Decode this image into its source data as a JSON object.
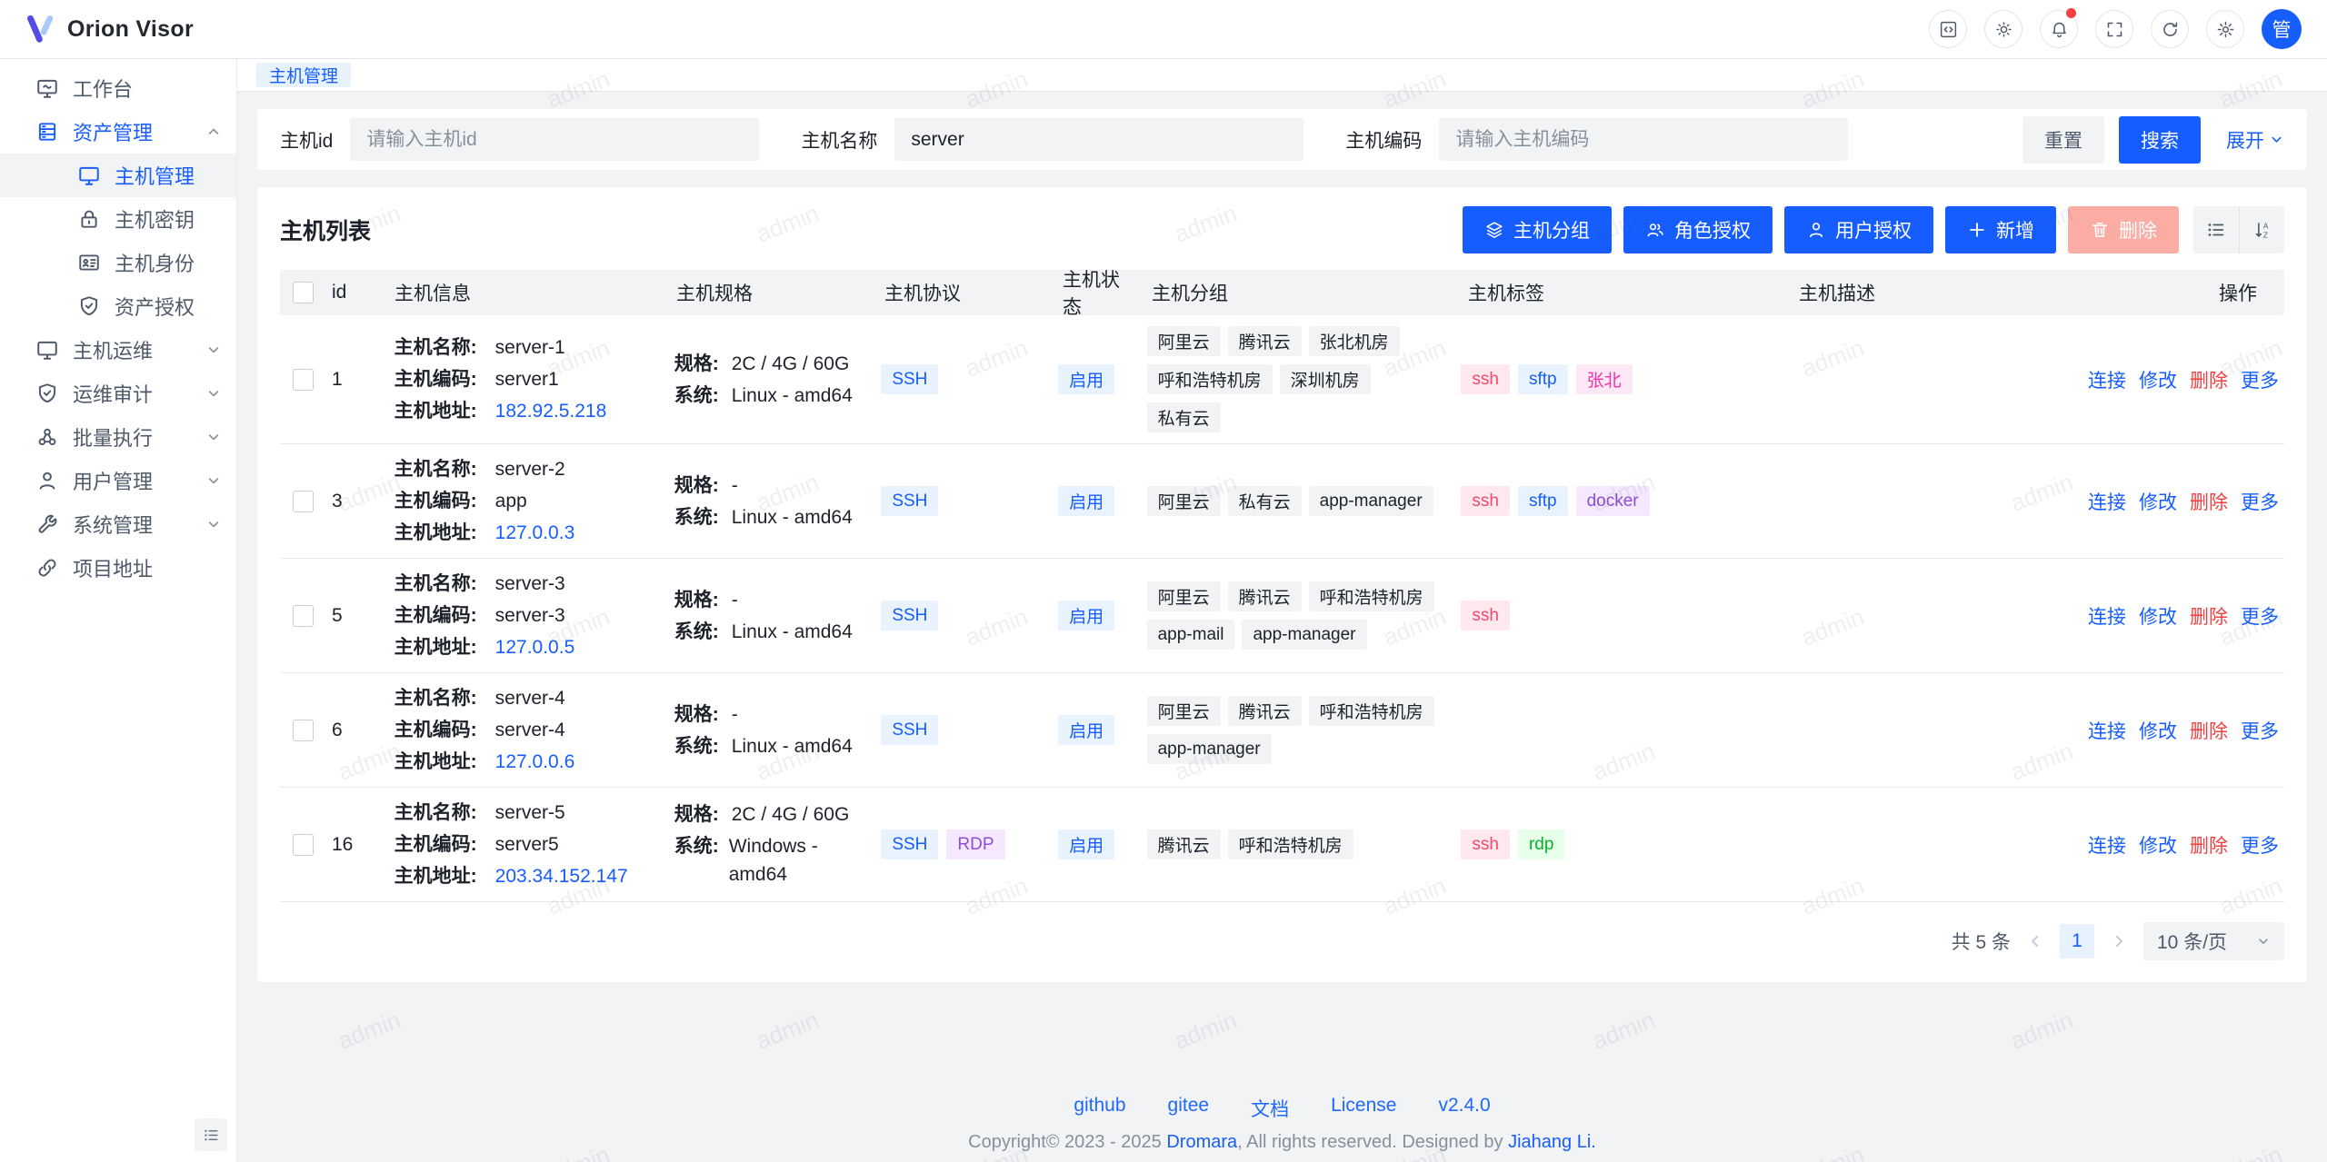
{
  "brand": {
    "title": "Orion Visor"
  },
  "header": {
    "icons": [
      "code",
      "theme-sun",
      "notification-bell",
      "fullscreen",
      "refresh",
      "settings-gear"
    ],
    "avatar_text": "管",
    "notification_has_badge": true
  },
  "sidebar": {
    "items": [
      {
        "label": "工作台"
      },
      {
        "label": "资产管理"
      },
      {
        "label": "主机管理"
      },
      {
        "label": "主机密钥"
      },
      {
        "label": "主机身份"
      },
      {
        "label": "资产授权"
      },
      {
        "label": "主机运维"
      },
      {
        "label": "运维审计"
      },
      {
        "label": "批量执行"
      },
      {
        "label": "用户管理"
      },
      {
        "label": "系统管理"
      },
      {
        "label": "项目地址"
      }
    ]
  },
  "tabbar": {
    "active_tab": "主机管理"
  },
  "filter": {
    "fields": [
      {
        "label": "主机id",
        "placeholder": "请输入主机id",
        "value": ""
      },
      {
        "label": "主机名称",
        "placeholder": "",
        "value": "server"
      },
      {
        "label": "主机编码",
        "placeholder": "请输入主机编码",
        "value": ""
      }
    ],
    "reset_label": "重置",
    "search_label": "搜索",
    "expand_label": "展开"
  },
  "table": {
    "title": "主机列表",
    "toolbar": [
      {
        "label": "主机分组",
        "icon": "layers"
      },
      {
        "label": "角色授权",
        "icon": "user-group"
      },
      {
        "label": "用户授权",
        "icon": "user"
      },
      {
        "label": "新增",
        "icon": "plus"
      },
      {
        "label": "删除",
        "icon": "trash"
      }
    ],
    "columns": [
      "id",
      "主机信息",
      "主机规格",
      "主机协议",
      "主机状态",
      "主机分组",
      "主机标签",
      "主机描述",
      "操作"
    ],
    "row_labels": {
      "name": "主机名称:",
      "code": "主机编码:",
      "address": "主机地址:",
      "spec": "规格:",
      "system": "系统:"
    },
    "row_actions": [
      {
        "label": "连接",
        "color": "blue"
      },
      {
        "label": "修改",
        "color": "blue"
      },
      {
        "label": "删除",
        "color": "red"
      },
      {
        "label": "更多",
        "color": "blue"
      }
    ],
    "rows": [
      {
        "id": "1",
        "name": "server-1",
        "code": "server1",
        "address": "182.92.5.218",
        "spec": "2C / 4G / 60G",
        "system": "Linux - amd64",
        "protocols": [
          "SSH"
        ],
        "status": "启用",
        "groups": [
          "阿里云",
          "腾讯云",
          "张北机房",
          "呼和浩特机房",
          "深圳机房",
          "私有云"
        ],
        "tags": [
          {
            "label": "ssh",
            "type": "rose"
          },
          {
            "label": "sftp",
            "type": "blue"
          },
          {
            "label": "张北",
            "type": "magenta"
          }
        ],
        "desc": ""
      },
      {
        "id": "3",
        "name": "server-2",
        "code": "app",
        "address": "127.0.0.3",
        "spec": "-",
        "system": "Linux - amd64",
        "protocols": [
          "SSH"
        ],
        "status": "启用",
        "groups": [
          "阿里云",
          "私有云",
          "app-manager"
        ],
        "tags": [
          {
            "label": "ssh",
            "type": "rose"
          },
          {
            "label": "sftp",
            "type": "blue"
          },
          {
            "label": "docker",
            "type": "purple"
          }
        ],
        "desc": ""
      },
      {
        "id": "5",
        "name": "server-3",
        "code": "server-3",
        "address": "127.0.0.5",
        "spec": "-",
        "system": "Linux - amd64",
        "protocols": [
          "SSH"
        ],
        "status": "启用",
        "groups": [
          "阿里云",
          "腾讯云",
          "呼和浩特机房",
          "app-mail",
          "app-manager"
        ],
        "tags": [
          {
            "label": "ssh",
            "type": "rose"
          }
        ],
        "desc": ""
      },
      {
        "id": "6",
        "name": "server-4",
        "code": "server-4",
        "address": "127.0.0.6",
        "spec": "-",
        "system": "Linux - amd64",
        "protocols": [
          "SSH"
        ],
        "status": "启用",
        "groups": [
          "阿里云",
          "腾讯云",
          "呼和浩特机房",
          "app-manager"
        ],
        "tags": [],
        "desc": ""
      },
      {
        "id": "16",
        "name": "server-5",
        "code": "server5",
        "address": "203.34.152.147",
        "spec": "2C / 4G / 60G",
        "system": "Windows - amd64",
        "protocols": [
          "SSH",
          "RDP"
        ],
        "status": "启用",
        "groups": [
          "腾讯云",
          "呼和浩特机房"
        ],
        "tags": [
          {
            "label": "ssh",
            "type": "rose"
          },
          {
            "label": "rdp",
            "type": "green"
          }
        ],
        "desc": ""
      }
    ],
    "pagination": {
      "total": "共 5 条",
      "current_page": "1",
      "page_size": "10 条/页"
    }
  },
  "footer": {
    "links": [
      "github",
      "gitee",
      "文档",
      "License",
      "v2.4.0"
    ],
    "copyright": {
      "prefix": "Copyright© 2023 - 2025 ",
      "link1": "Dromara",
      "middle": ", All rights reserved. Designed by ",
      "link2": "Jiahang Li."
    }
  },
  "watermark": {
    "text": "admin"
  },
  "colors": {
    "primary": "#165dff",
    "danger": "#f53f3f",
    "tag_rose": "#f5476e",
    "tag_magenta": "#f531a3",
    "tag_purple": "#8d4eda",
    "tag_green": "#00b42a",
    "status_bg": "#e8f3ff"
  }
}
